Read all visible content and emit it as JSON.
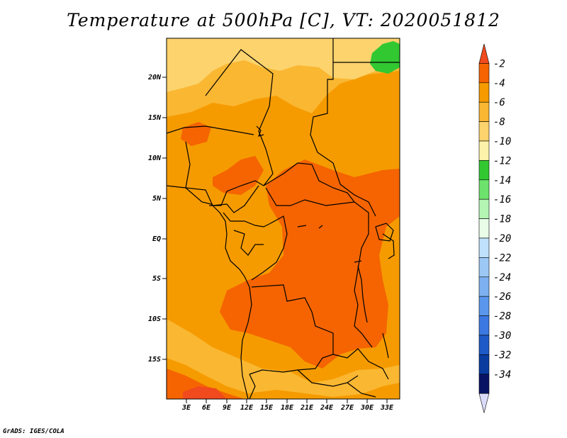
{
  "title": "Temperature at 500hPa [C], VT: 2020051812",
  "credit": "GrADS: IGES/COLA",
  "lat_labels": [
    "20N",
    "15N",
    "10N",
    "5N",
    "EQ",
    "5S",
    "10S",
    "15S"
  ],
  "lon_labels": [
    "3E",
    "6E",
    "9E",
    "12E",
    "15E",
    "18E",
    "21E",
    "24E",
    "27E",
    "30E",
    "33E"
  ],
  "colorbar": {
    "labels": [
      "-2",
      "-4",
      "-6",
      "-8",
      "-10",
      "-12",
      "-14",
      "-16",
      "-18",
      "-20",
      "-22",
      "-24",
      "-26",
      "-28",
      "-30",
      "-32",
      "-34"
    ],
    "colors": [
      "#f04a1e",
      "#f56400",
      "#f59b00",
      "#fab732",
      "#fcd36c",
      "#fcf2aa",
      "#32c832",
      "#6de26d",
      "#b4f5b4",
      "#e8fce8",
      "#bfe1fc",
      "#9cc8f5",
      "#7db0f0",
      "#5a96eb",
      "#3c78e1",
      "#1e5ac8",
      "#0a3ca0",
      "#0a1464",
      "#dcdcfa"
    ]
  },
  "map_colors": {
    "frame": "#000000",
    "border": "#000000",
    "c_m4": "#f56400",
    "c_m6": "#f59b00",
    "c_m8": "#fab732",
    "c_m10": "#fcd36c",
    "c_m12": "#fcf2aa",
    "c_m14": "#32c832",
    "c_m2": "#f04a1e"
  }
}
